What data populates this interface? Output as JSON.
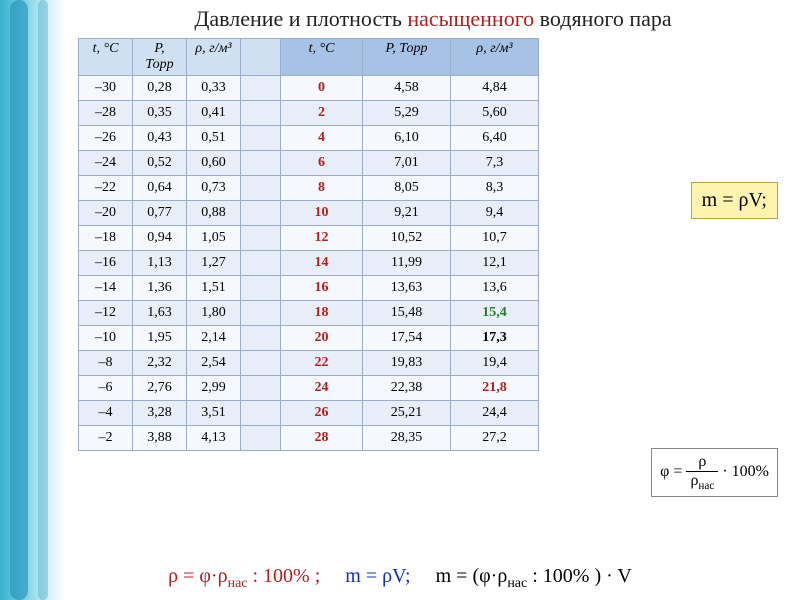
{
  "title_pre": "Давление и плотность ",
  "title_accent": "насыщенного",
  "title_post": " водяного пара",
  "headers": {
    "t1": "t, °C",
    "p1": "P, Торр",
    "rho1": "ρ, г/м³",
    "t2": "t, °C",
    "p2": "P, Торр",
    "rho2": "ρ, г/м³"
  },
  "rows": [
    {
      "t1": "–30",
      "p1": "0,28",
      "rho1": "0,33",
      "t2": "0",
      "p2": "4,58",
      "rho2": "4,84",
      "style": ""
    },
    {
      "t1": "–28",
      "p1": "0,35",
      "rho1": "0,41",
      "t2": "2",
      "p2": "5,29",
      "rho2": "5,60",
      "style": ""
    },
    {
      "t1": "–26",
      "p1": "0,43",
      "rho1": "0,51",
      "t2": "4",
      "p2": "6,10",
      "rho2": "6,40",
      "style": ""
    },
    {
      "t1": "–24",
      "p1": "0,52",
      "rho1": "0,60",
      "t2": "6",
      "p2": "7,01",
      "rho2": "7,3",
      "style": ""
    },
    {
      "t1": "–22",
      "p1": "0,64",
      "rho1": "0,73",
      "t2": "8",
      "p2": "8,05",
      "rho2": "8,3",
      "style": ""
    },
    {
      "t1": "–20",
      "p1": "0,77",
      "rho1": "0,88",
      "t2": "10",
      "p2": "9,21",
      "rho2": "9,4",
      "style": ""
    },
    {
      "t1": "–18",
      "p1": "0,94",
      "rho1": "1,05",
      "t2": "12",
      "p2": "10,52",
      "rho2": "10,7",
      "style": ""
    },
    {
      "t1": "–16",
      "p1": "1,13",
      "rho1": "1,27",
      "t2": "14",
      "p2": "11,99",
      "rho2": "12,1",
      "style": ""
    },
    {
      "t1": "–14",
      "p1": "1,36",
      "rho1": "1,51",
      "t2": "16",
      "p2": "13,63",
      "rho2": "13,6",
      "style": ""
    },
    {
      "t1": "–12",
      "p1": "1,63",
      "rho1": "1,80",
      "t2": "18",
      "p2": "15,48",
      "rho2": "15,4",
      "style": "green"
    },
    {
      "t1": "–10",
      "p1": "1,95",
      "rho1": "2,14",
      "t2": "20",
      "p2": "17,54",
      "rho2": "17,3",
      "style": "bold"
    },
    {
      "t1": "–8",
      "p1": "2,32",
      "rho1": "2,54",
      "t2": "22",
      "p2": "19,83",
      "rho2": "19,4",
      "style": ""
    },
    {
      "t1": "–6",
      "p1": "2,76",
      "rho1": "2,99",
      "t2": "24",
      "p2": "22,38",
      "rho2": "21,8",
      "style": "red"
    },
    {
      "t1": "–4",
      "p1": "3,28",
      "rho1": "3,51",
      "t2": "26",
      "p2": "25,21",
      "rho2": "24,4",
      "style": ""
    },
    {
      "t1": "–2",
      "p1": "3,88",
      "rho1": "4,13",
      "t2": "28",
      "p2": "28,35",
      "rho2": "27,2",
      "style": ""
    }
  ],
  "mass_formula": "m = ρV;",
  "phi_formula_html": "φ = <span style='display:inline-block;border-bottom:1px solid #000;padding:0 2px;'>ρ</span> / ρ<sub>нас</sub> · 100%",
  "bottom": {
    "f1": "ρ = φ·ρнас : 100% ;",
    "f2": "m = ρV;",
    "f3": "m = (φ·ρнас : 100% ) · V"
  },
  "colors": {
    "header_bg": "#cfe0f2",
    "header2_bg": "#a6c3e6",
    "zebra0": "#f5f9fd",
    "zebra1": "#e8eef7",
    "accent_red": "#b02020",
    "accent_green": "#2a7a2a",
    "accent_blue": "#1030c0",
    "border": "#9aaecb"
  }
}
